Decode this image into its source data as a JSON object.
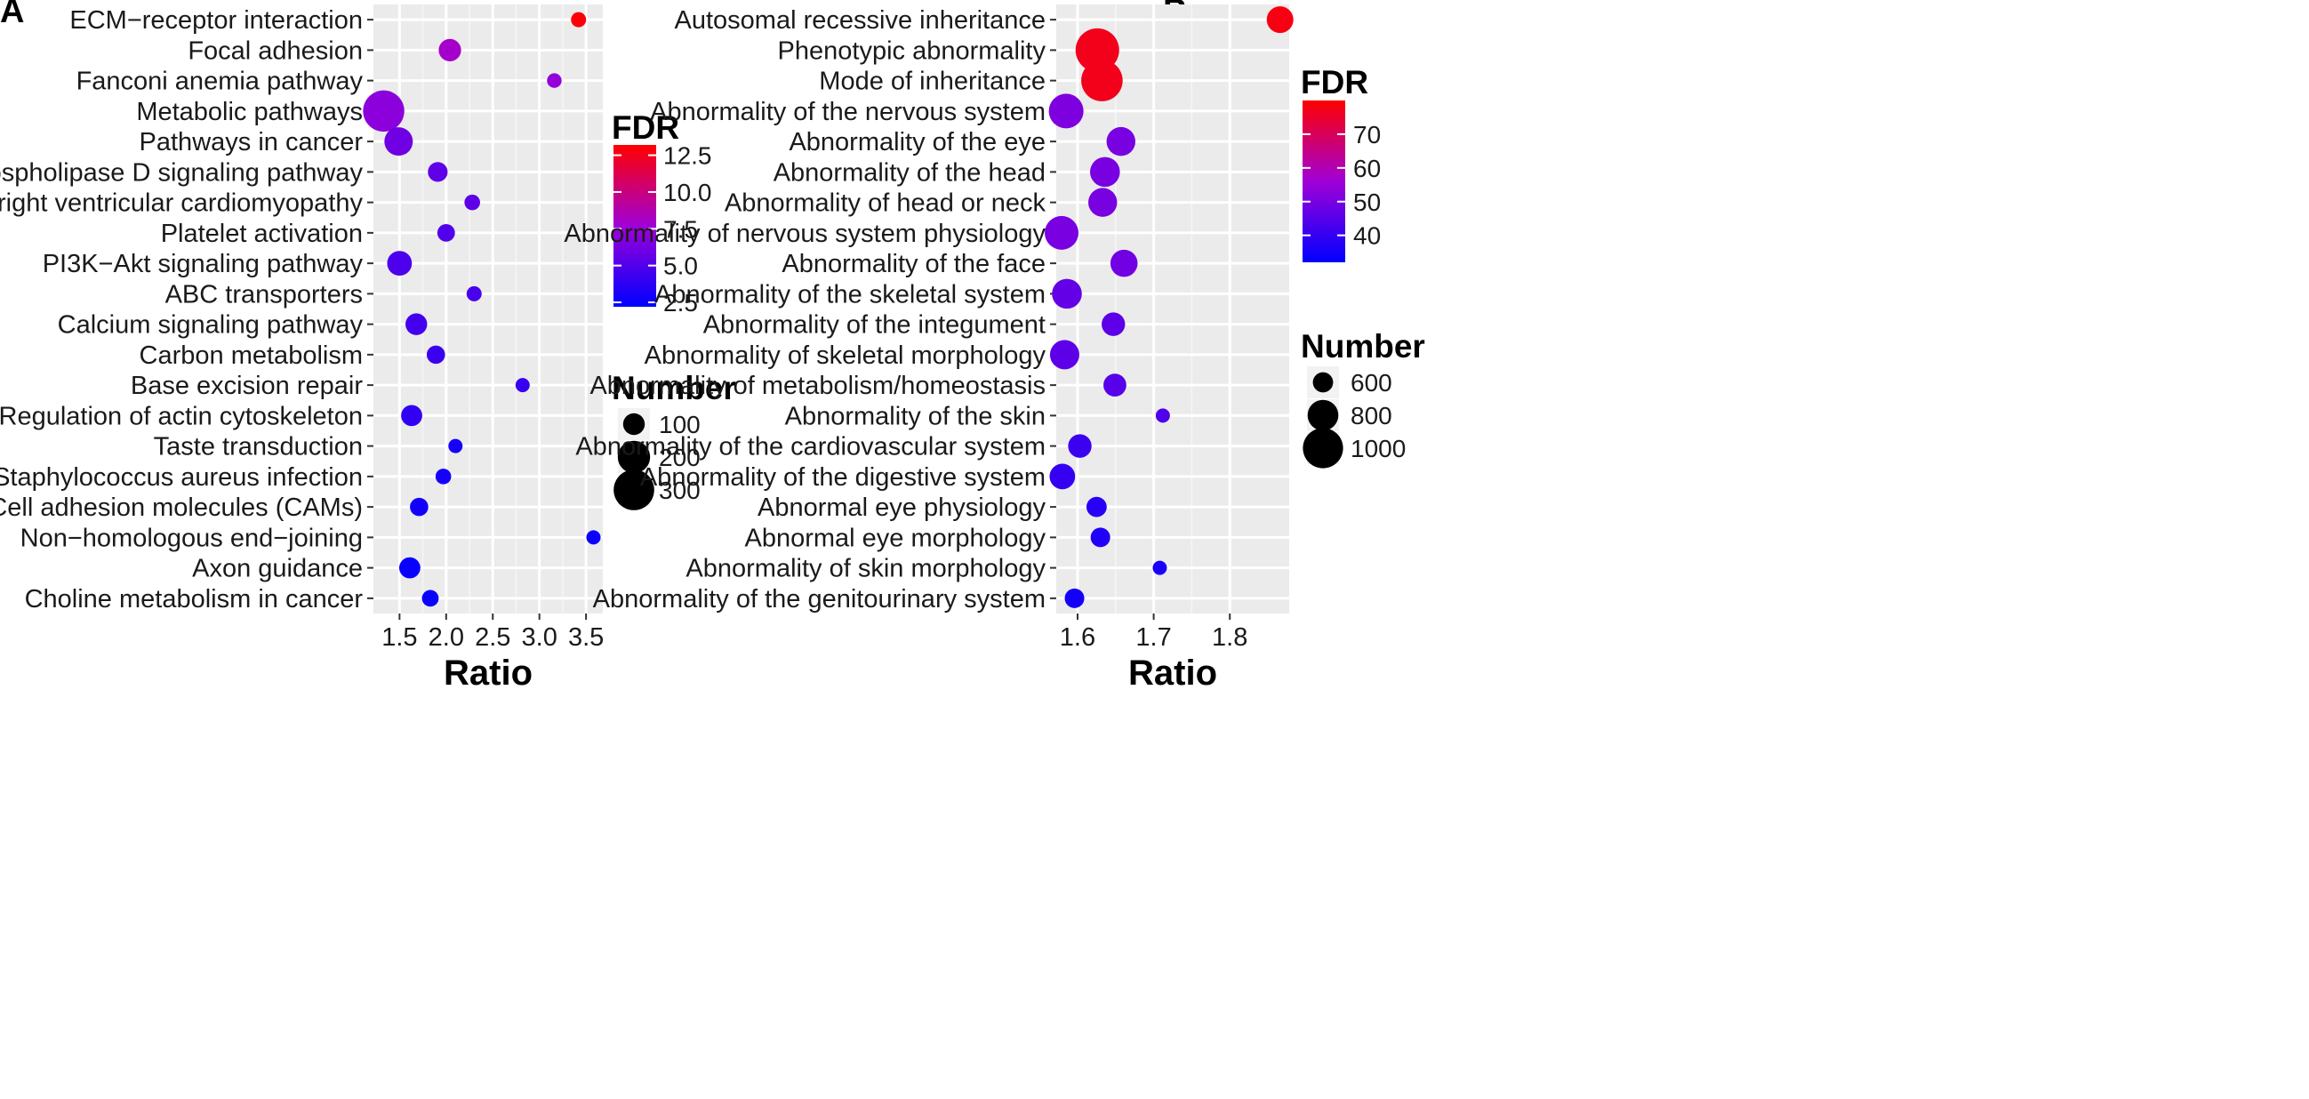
{
  "chart_data": [
    {
      "panel": "A",
      "type": "scatter",
      "xlabel": "Ratio",
      "ylabel": "",
      "xlim": [
        1.22,
        3.68
      ],
      "xticks": [
        1.5,
        2.0,
        2.5,
        3.0,
        3.5
      ],
      "xtick_labels": [
        "1.5",
        "2.0",
        "2.5",
        "3.0",
        "3.5"
      ],
      "grid": true,
      "categories": [
        "ECM−receptor interaction",
        "Focal adhesion",
        "Fanconi anemia pathway",
        "Metabolic pathways",
        "Pathways in cancer",
        "Phospholipase D signaling pathway",
        "Arrhythmogenic right ventricular cardiomyopathy",
        "Platelet activation",
        "PI3K−Akt signaling pathway",
        "ABC transporters",
        "Calcium signaling pathway",
        "Carbon metabolism",
        "Base excision repair",
        "Regulation of actin cytoskeleton",
        "Taste transduction",
        "Staphylococcus aureus infection",
        "Cell adhesion molecules (CAMs)",
        "Non−homologous end−joining",
        "Axon guidance",
        "Choline metabolism in cancer"
      ],
      "ratio": [
        3.42,
        2.04,
        3.16,
        1.33,
        1.49,
        1.91,
        2.28,
        2.0,
        1.5,
        2.3,
        1.68,
        1.89,
        2.82,
        1.63,
        2.1,
        1.97,
        1.71,
        3.58,
        1.61,
        1.83
      ],
      "number": [
        55,
        105,
        52,
        310,
        160,
        85,
        58,
        70,
        125,
        55,
        100,
        75,
        40,
        95,
        45,
        58,
        75,
        25,
        95,
        65
      ],
      "fdr": [
        13.0,
        8.0,
        7.3,
        7.0,
        6.0,
        5.5,
        5.4,
        5.0,
        4.8,
        4.7,
        4.5,
        4.2,
        4.1,
        3.9,
        3.0,
        3.0,
        2.8,
        2.6,
        2.5,
        2.5
      ],
      "color_legend": {
        "title": "FDR",
        "ticks": [
          2.5,
          5.0,
          7.5,
          10.0,
          12.5
        ],
        "tick_labels": [
          "2.5",
          "5.0",
          "7.5",
          "10.0",
          "12.5"
        ],
        "range": [
          2.2,
          13.2
        ]
      },
      "size_legend": {
        "title": "Number",
        "values": [
          100,
          200,
          300
        ],
        "labels": [
          "100",
          "200",
          "300"
        ]
      }
    },
    {
      "panel": "B",
      "type": "scatter",
      "xlabel": "Ratio",
      "ylabel": "",
      "xlim": [
        1.572,
        1.878
      ],
      "xticks": [
        1.6,
        1.7,
        1.8
      ],
      "xtick_labels": [
        "1.6",
        "1.7",
        "1.8"
      ],
      "grid": true,
      "categories": [
        "Autosomal recessive inheritance",
        "Phenotypic abnormality",
        "Mode of inheritance",
        "Abnormality of the nervous system",
        "Abnormality of the eye",
        "Abnormality of the head",
        "Abnormality of head or neck",
        "Abnormality of nervous system physiology",
        "Abnormality of the face",
        "Abnormality of the skeletal system",
        "Abnormality of the integument",
        "Abnormality of skeletal morphology",
        "Abnormality of metabolism/homeostasis",
        "Abnormality of the skin",
        "Abnormality of the cardiovascular system",
        "Abnormality of the digestive system",
        "Abnormal eye physiology",
        "Abnormal eye morphology",
        "Abnormality of skin morphology",
        "Abnormality of the genitourinary system"
      ],
      "ratio": [
        1.866,
        1.626,
        1.632,
        1.585,
        1.657,
        1.636,
        1.633,
        1.579,
        1.661,
        1.586,
        1.647,
        1.583,
        1.649,
        1.712,
        1.603,
        1.58,
        1.625,
        1.63,
        1.708,
        1.596
      ],
      "number": [
        720,
        1080,
        1030,
        880,
        760,
        780,
        760,
        860,
        730,
        780,
        660,
        770,
        650,
        470,
        660,
        700,
        600,
        590,
        420,
        590
      ],
      "fdr": [
        78,
        77,
        77,
        51,
        50,
        50,
        50,
        50,
        49,
        47,
        46,
        46,
        45,
        44,
        41,
        40,
        38,
        37,
        36,
        35
      ],
      "color_legend": {
        "title": "FDR",
        "ticks": [
          40,
          50,
          60,
          70
        ],
        "tick_labels": [
          "40",
          "50",
          "60",
          "70"
        ],
        "range": [
          32,
          80
        ]
      },
      "size_legend": {
        "title": "Number",
        "values": [
          600,
          800,
          1000
        ],
        "labels": [
          "600",
          "800",
          "1000"
        ]
      }
    }
  ]
}
